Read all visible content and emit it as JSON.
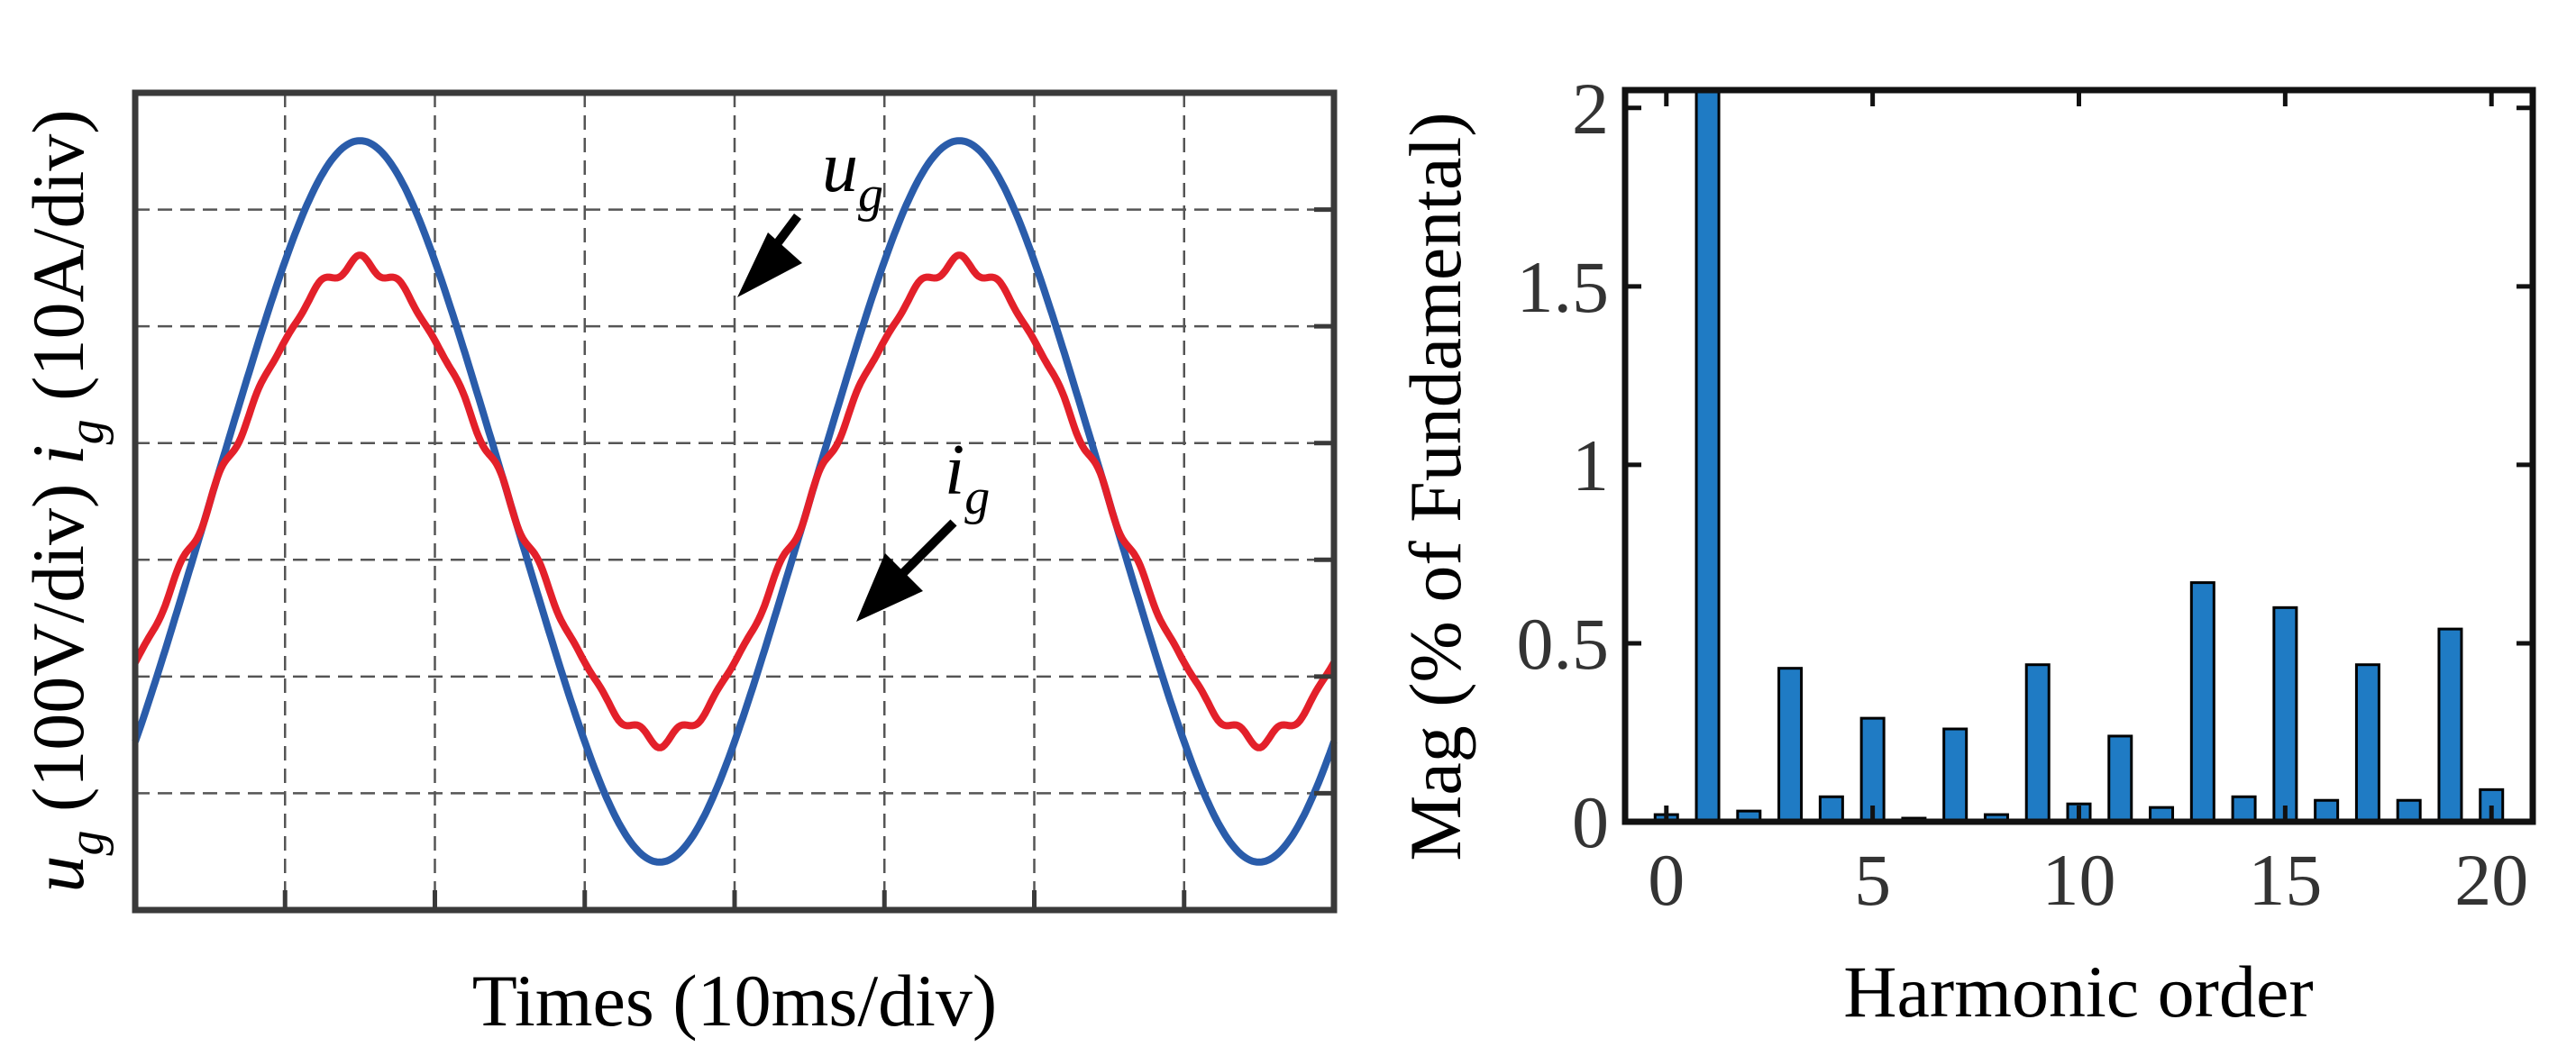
{
  "colors": {
    "ug": "#2a5caa",
    "ig": "#e3202a",
    "bar": "#1f7bc4",
    "frame": "#3a3a3a",
    "grid": "#555555"
  },
  "chart_data": [
    {
      "type": "line",
      "title": "",
      "xlabel": "Times (10ms/div)",
      "ylabel": {
        "u": "u",
        "u_sub": "g",
        "u_unit": "(100V/div)",
        "i": "i",
        "i_sub": "g",
        "i_unit": "(10A/div)"
      },
      "x_divisions": 8,
      "y_divisions": 7,
      "xlim_div": [
        0,
        8
      ],
      "ylim_div": [
        -3.5,
        3.5
      ],
      "grid": true,
      "series": [
        {
          "name": "ug",
          "label_main": "u",
          "label_sub": "g",
          "color": "#2a5caa",
          "amplitude_div": 3.0,
          "period_div": 4.0,
          "phase_div": 0.5
        },
        {
          "name": "ig",
          "label_main": "i",
          "label_sub": "g",
          "color": "#e3202a",
          "amplitude_div": 2.0,
          "period_div": 4.0,
          "phase_div": 0.5
        }
      ]
    },
    {
      "type": "bar",
      "title": "",
      "xlabel": "Harmonic order",
      "ylabel": "Mag (% of Fundamental)",
      "xlim": [
        -1,
        21
      ],
      "ylim": [
        0,
        2.05
      ],
      "xticks": [
        "0",
        "5",
        "10",
        "15",
        "20"
      ],
      "xtick_values": [
        0,
        5,
        10,
        15,
        20
      ],
      "yticks": [
        "0",
        "0.5",
        "1",
        "1.5",
        "2"
      ],
      "ytick_values": [
        0,
        0.5,
        1,
        1.5,
        2
      ],
      "categories": [
        0,
        1,
        2,
        3,
        4,
        5,
        6,
        7,
        8,
        9,
        10,
        11,
        12,
        13,
        14,
        15,
        16,
        17,
        18,
        19,
        20
      ],
      "values": [
        0.02,
        2.05,
        0.03,
        0.43,
        0.07,
        0.29,
        0.01,
        0.26,
        0.02,
        0.44,
        0.05,
        0.24,
        0.04,
        0.67,
        0.07,
        0.6,
        0.06,
        0.44,
        0.06,
        0.54,
        0.09
      ],
      "grid": false
    }
  ]
}
